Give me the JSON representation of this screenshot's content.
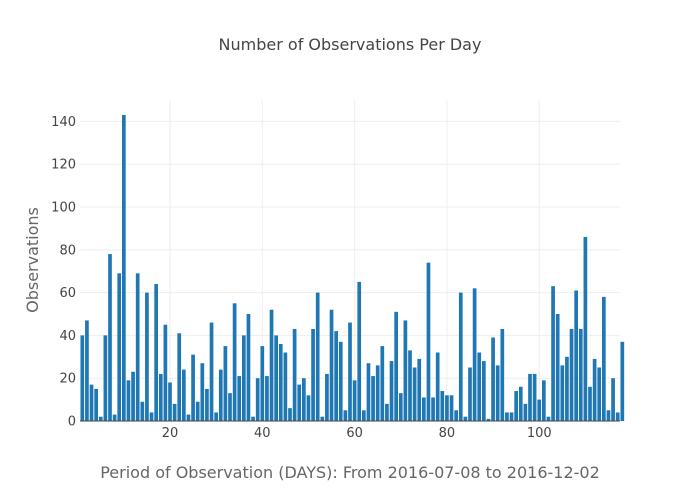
{
  "chart_data": {
    "type": "bar",
    "title": "Number of Observations Per Day",
    "xlabel": "Period of Observation (DAYS): From 2016-07-08 to 2016-12-02",
    "ylabel": "Observations",
    "x_start": 1,
    "x_ticks": [
      20,
      40,
      60,
      80,
      100
    ],
    "y_ticks": [
      0,
      20,
      40,
      60,
      80,
      100,
      120,
      140
    ],
    "xlim": [
      0.5,
      117.5
    ],
    "ylim": [
      0,
      150
    ],
    "grid": true,
    "bar_color": "#1f77b4",
    "values": [
      40,
      47,
      17,
      15,
      2,
      40,
      78,
      3,
      69,
      143,
      19,
      23,
      69,
      9,
      60,
      4,
      64,
      22,
      45,
      18,
      8,
      41,
      24,
      3,
      31,
      9,
      27,
      15,
      46,
      4,
      24,
      35,
      13,
      55,
      21,
      40,
      50,
      2,
      20,
      35,
      21,
      52,
      40,
      36,
      32,
      6,
      43,
      17,
      20,
      12,
      43,
      60,
      2,
      22,
      52,
      42,
      37,
      5,
      46,
      19,
      65,
      5,
      27,
      21,
      26,
      35,
      8,
      28,
      51,
      13,
      47,
      33,
      25,
      29,
      11,
      74,
      11,
      32,
      14,
      12,
      12,
      5,
      60,
      2,
      25,
      62,
      32,
      28,
      1,
      39,
      26,
      43,
      4,
      4,
      14,
      16,
      8,
      22,
      22,
      10,
      19,
      2,
      63,
      50,
      26,
      30,
      43,
      61,
      43,
      86,
      16,
      29,
      25,
      58,
      5,
      20,
      4,
      37
    ]
  }
}
